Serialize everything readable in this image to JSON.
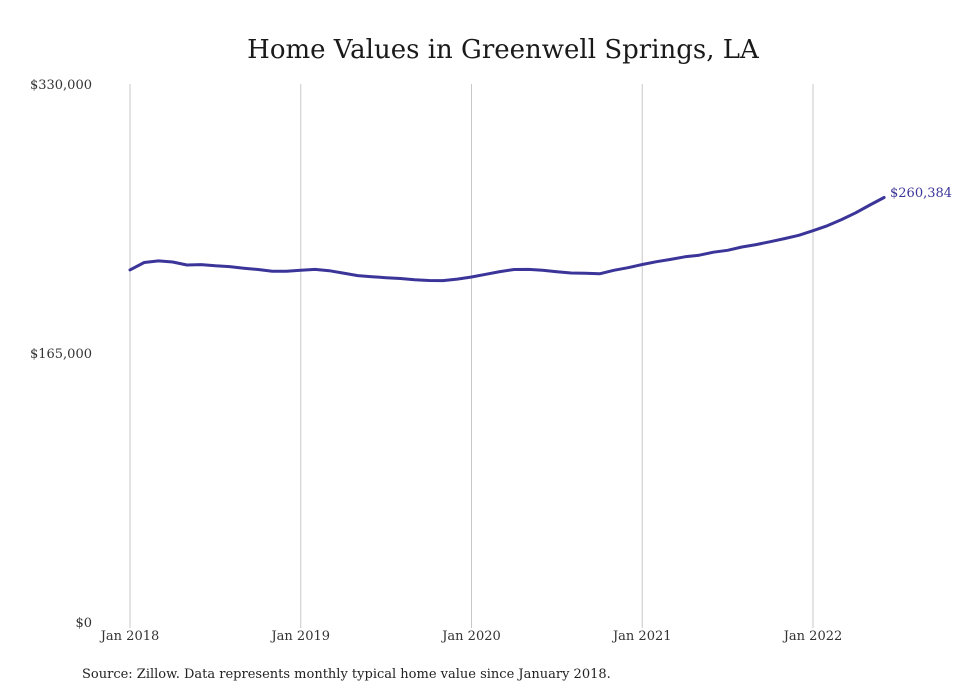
{
  "chart_data": {
    "type": "line",
    "title": "Home Values in Greenwell Springs, LA",
    "xlabel": "",
    "ylabel": "",
    "ylim": [
      0,
      330000
    ],
    "y_ticks": [
      0,
      165000,
      330000
    ],
    "y_tick_labels": [
      "$0",
      "$165,000",
      "$330,000"
    ],
    "x_ticks": [
      "2018-01",
      "2019-01",
      "2020-01",
      "2021-01",
      "2022-01"
    ],
    "x_tick_labels": [
      "Jan 2018",
      "Jan 2019",
      "Jan 2020",
      "Jan 2021",
      "Jan 2022"
    ],
    "grid": "vertical",
    "line_color": "#3b3599",
    "grid_color": "#c8c8c8",
    "end_label": "$260,384",
    "series": [
      {
        "values": [
          [
            "2018-01",
            216000
          ],
          [
            "2018-02",
            220500
          ],
          [
            "2018-03",
            221500
          ],
          [
            "2018-04",
            220800
          ],
          [
            "2018-05",
            219000
          ],
          [
            "2018-06",
            219200
          ],
          [
            "2018-07",
            218500
          ],
          [
            "2018-08",
            218000
          ],
          [
            "2018-09",
            217000
          ],
          [
            "2018-10",
            216200
          ],
          [
            "2018-11",
            215200
          ],
          [
            "2018-12",
            215200
          ],
          [
            "2019-01",
            215700
          ],
          [
            "2019-02",
            216300
          ],
          [
            "2019-03",
            215500
          ],
          [
            "2019-04",
            214000
          ],
          [
            "2019-05",
            212500
          ],
          [
            "2019-06",
            211800
          ],
          [
            "2019-07",
            211200
          ],
          [
            "2019-08",
            210700
          ],
          [
            "2019-09",
            209900
          ],
          [
            "2019-10",
            209500
          ],
          [
            "2019-11",
            209400
          ],
          [
            "2019-12",
            210300
          ],
          [
            "2020-01",
            211600
          ],
          [
            "2020-02",
            213300
          ],
          [
            "2020-03",
            214900
          ],
          [
            "2020-04",
            216200
          ],
          [
            "2020-05",
            216300
          ],
          [
            "2020-06",
            215700
          ],
          [
            "2020-07",
            214800
          ],
          [
            "2020-08",
            214100
          ],
          [
            "2020-09",
            213900
          ],
          [
            "2020-10",
            213600
          ],
          [
            "2020-11",
            215700
          ],
          [
            "2020-12",
            217300
          ],
          [
            "2021-01",
            219300
          ],
          [
            "2021-02",
            221000
          ],
          [
            "2021-03",
            222400
          ],
          [
            "2021-04",
            224000
          ],
          [
            "2021-05",
            225000
          ],
          [
            "2021-06",
            226800
          ],
          [
            "2021-07",
            228000
          ],
          [
            "2021-08",
            230000
          ],
          [
            "2021-09",
            231500
          ],
          [
            "2021-10",
            233300
          ],
          [
            "2021-11",
            235200
          ],
          [
            "2021-12",
            237200
          ],
          [
            "2022-01",
            240000
          ],
          [
            "2022-02",
            243000
          ],
          [
            "2022-03",
            246800
          ],
          [
            "2022-04",
            251000
          ],
          [
            "2022-05",
            255800
          ],
          [
            "2022-06",
            260384
          ]
        ]
      }
    ]
  },
  "source_note": "Source: Zillow. Data represents monthly typical home value since January 2018."
}
